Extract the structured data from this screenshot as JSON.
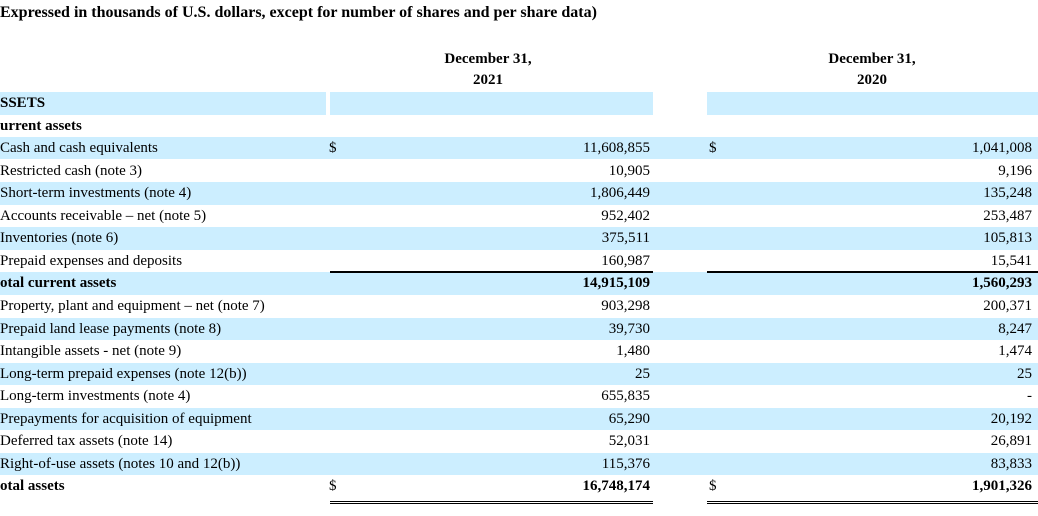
{
  "caption": "Expressed in thousands of U.S. dollars, except for number of shares and per share data)",
  "columns": {
    "col2021": {
      "line1": "December 31,",
      "line2": "2021"
    },
    "col2020": {
      "line1": "December 31,",
      "line2": "2020"
    }
  },
  "rows": [
    {
      "label": "SSETS",
      "v21": "",
      "v20": "",
      "cur21": "",
      "cur20": "",
      "bold": true
    },
    {
      "label": "urrent assets",
      "v21": "",
      "v20": "",
      "cur21": "",
      "cur20": "",
      "bold": true
    },
    {
      "label": "Cash and cash equivalents",
      "v21": "11,608,855",
      "v20": "1,041,008",
      "cur21": "$",
      "cur20": "$"
    },
    {
      "label": "Restricted cash (note 3)",
      "v21": "10,905",
      "v20": "9,196",
      "cur21": "",
      "cur20": ""
    },
    {
      "label": "Short-term investments (note 4)",
      "v21": "1,806,449",
      "v20": "135,248",
      "cur21": "",
      "cur20": ""
    },
    {
      "label": "Accounts receivable – net (note 5)",
      "v21": "952,402",
      "v20": "253,487",
      "cur21": "",
      "cur20": ""
    },
    {
      "label": "Inventories (note 6)",
      "v21": "375,511",
      "v20": "105,813",
      "cur21": "",
      "cur20": ""
    },
    {
      "label": "Prepaid expenses and deposits",
      "v21": "160,987",
      "v20": "15,541",
      "cur21": "",
      "cur20": ""
    },
    {
      "label": "otal current assets",
      "v21": "14,915,109",
      "v20": "1,560,293",
      "cur21": "",
      "cur20": "",
      "bold": true
    },
    {
      "label": "Property, plant and equipment – net (note 7)",
      "v21": "903,298",
      "v20": "200,371",
      "cur21": "",
      "cur20": ""
    },
    {
      "label": "Prepaid land lease payments (note 8)",
      "v21": "39,730",
      "v20": "8,247",
      "cur21": "",
      "cur20": ""
    },
    {
      "label": "Intangible assets - net (note 9)",
      "v21": "1,480",
      "v20": "1,474",
      "cur21": "",
      "cur20": ""
    },
    {
      "label": "Long-term prepaid expenses (note 12(b))",
      "v21": "25",
      "v20": "25",
      "cur21": "",
      "cur20": ""
    },
    {
      "label": "Long-term investments (note 4)",
      "v21": "655,835",
      "v20": "-",
      "cur21": "",
      "cur20": ""
    },
    {
      "label": "Prepayments for acquisition of equipment",
      "v21": "65,290",
      "v20": "20,192",
      "cur21": "",
      "cur20": ""
    },
    {
      "label": "Deferred tax assets (note 14)",
      "v21": "52,031",
      "v20": "26,891",
      "cur21": "",
      "cur20": ""
    },
    {
      "label": "Right-of-use assets (notes 10 and 12(b))",
      "v21": "115,376",
      "v20": "83,833",
      "cur21": "",
      "cur20": ""
    },
    {
      "label": "otal assets",
      "v21": "16,748,174",
      "v20": "1,901,326",
      "cur21": "$",
      "cur20": "$",
      "bold": true
    }
  ]
}
